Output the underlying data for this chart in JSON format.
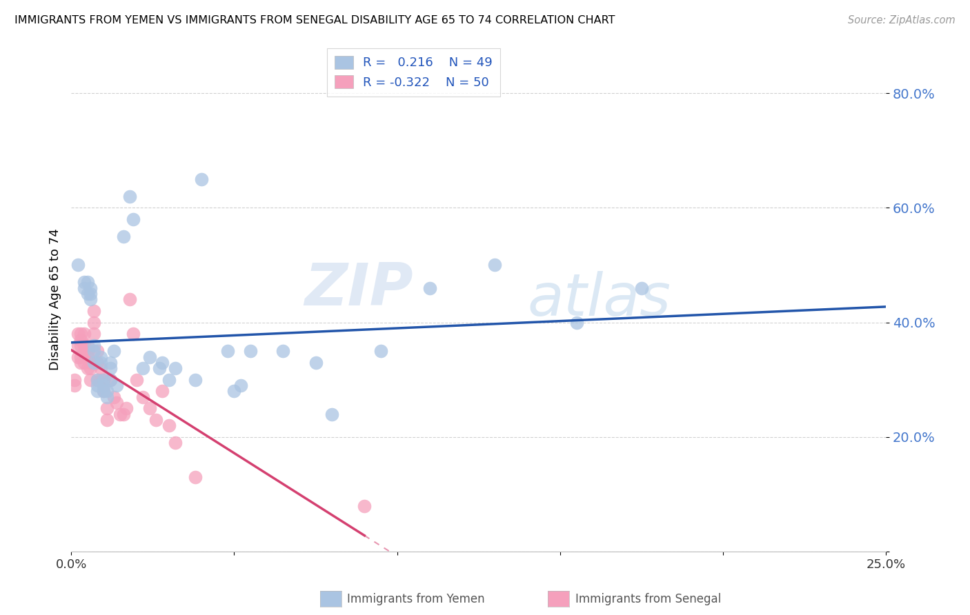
{
  "title": "IMMIGRANTS FROM YEMEN VS IMMIGRANTS FROM SENEGAL DISABILITY AGE 65 TO 74 CORRELATION CHART",
  "source": "Source: ZipAtlas.com",
  "ylabel": "Disability Age 65 to 74",
  "xlim": [
    0.0,
    0.25
  ],
  "ylim": [
    0.0,
    0.88
  ],
  "yticks": [
    0.0,
    0.2,
    0.4,
    0.6,
    0.8
  ],
  "ytick_labels": [
    "",
    "20.0%",
    "40.0%",
    "60.0%",
    "80.0%"
  ],
  "xticks": [
    0.0,
    0.05,
    0.1,
    0.15,
    0.2,
    0.25
  ],
  "xtick_labels": [
    "0.0%",
    "",
    "",
    "",
    "",
    "25.0%"
  ],
  "color_yemen": "#aac4e2",
  "color_senegal": "#f5a0bc",
  "color_line_yemen": "#2255aa",
  "color_line_senegal": "#d44070",
  "watermark_zip": "ZIP",
  "watermark_atlas": "atlas",
  "background_color": "#ffffff",
  "grid_color": "#cccccc",
  "yemen_x": [
    0.002,
    0.004,
    0.004,
    0.005,
    0.005,
    0.006,
    0.006,
    0.006,
    0.007,
    0.007,
    0.007,
    0.008,
    0.008,
    0.008,
    0.009,
    0.009,
    0.01,
    0.01,
    0.01,
    0.011,
    0.011,
    0.012,
    0.012,
    0.012,
    0.013,
    0.014,
    0.016,
    0.018,
    0.019,
    0.022,
    0.024,
    0.027,
    0.028,
    0.03,
    0.032,
    0.038,
    0.04,
    0.048,
    0.05,
    0.052,
    0.055,
    0.065,
    0.075,
    0.08,
    0.095,
    0.11,
    0.13,
    0.155,
    0.175
  ],
  "yemen_y": [
    0.5,
    0.46,
    0.47,
    0.45,
    0.47,
    0.44,
    0.45,
    0.46,
    0.33,
    0.35,
    0.36,
    0.3,
    0.29,
    0.28,
    0.34,
    0.33,
    0.3,
    0.29,
    0.28,
    0.27,
    0.28,
    0.32,
    0.33,
    0.3,
    0.35,
    0.29,
    0.55,
    0.62,
    0.58,
    0.32,
    0.34,
    0.32,
    0.33,
    0.3,
    0.32,
    0.3,
    0.65,
    0.35,
    0.28,
    0.29,
    0.35,
    0.35,
    0.33,
    0.24,
    0.35,
    0.46,
    0.5,
    0.4,
    0.46
  ],
  "senegal_x": [
    0.001,
    0.001,
    0.002,
    0.002,
    0.002,
    0.003,
    0.003,
    0.003,
    0.003,
    0.003,
    0.004,
    0.004,
    0.004,
    0.004,
    0.005,
    0.005,
    0.005,
    0.005,
    0.006,
    0.006,
    0.006,
    0.007,
    0.007,
    0.007,
    0.008,
    0.008,
    0.008,
    0.009,
    0.009,
    0.01,
    0.01,
    0.011,
    0.011,
    0.012,
    0.013,
    0.014,
    0.015,
    0.016,
    0.017,
    0.018,
    0.019,
    0.02,
    0.022,
    0.024,
    0.026,
    0.028,
    0.03,
    0.032,
    0.038,
    0.09
  ],
  "senegal_y": [
    0.3,
    0.29,
    0.38,
    0.36,
    0.34,
    0.38,
    0.37,
    0.36,
    0.34,
    0.33,
    0.38,
    0.36,
    0.35,
    0.33,
    0.36,
    0.35,
    0.34,
    0.32,
    0.33,
    0.32,
    0.3,
    0.4,
    0.42,
    0.38,
    0.35,
    0.33,
    0.3,
    0.32,
    0.3,
    0.3,
    0.28,
    0.25,
    0.23,
    0.3,
    0.27,
    0.26,
    0.24,
    0.24,
    0.25,
    0.44,
    0.38,
    0.3,
    0.27,
    0.25,
    0.23,
    0.28,
    0.22,
    0.19,
    0.13,
    0.08
  ]
}
